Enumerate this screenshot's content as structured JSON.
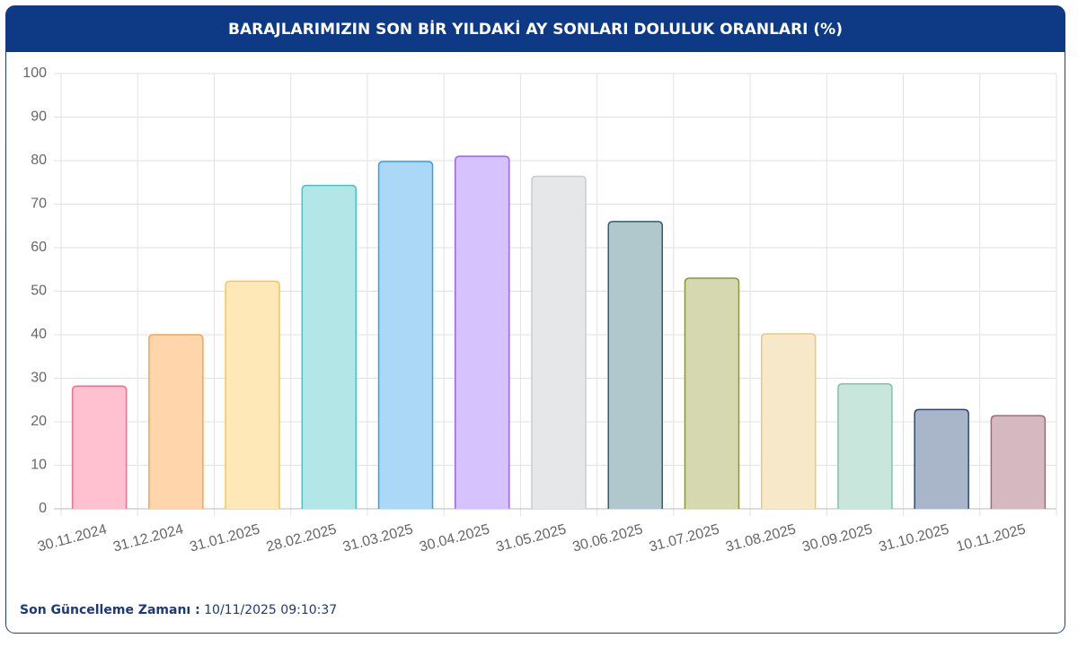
{
  "chart_data": {
    "type": "bar",
    "title": "BARAJLARIMIZIN SON BİR YILDAKİ AY SONLARI DOLULUK ORANLARI (%)",
    "categories": [
      "30.11.2024",
      "31.12.2024",
      "31.01.2025",
      "28.02.2025",
      "31.03.2025",
      "30.04.2025",
      "31.05.2025",
      "30.06.2025",
      "31.07.2025",
      "31.08.2025",
      "30.09.2025",
      "31.10.2025",
      "10.11.2025"
    ],
    "values": [
      28.2,
      40.0,
      52.3,
      74.3,
      79.8,
      81.0,
      76.4,
      66.0,
      53.0,
      40.2,
      28.7,
      22.8,
      21.4
    ],
    "colors": [
      "#ffc0cf",
      "#ffd6ac",
      "#ffe8b8",
      "#b3e6e6",
      "#abd8f7",
      "#d6c2fd",
      "#e6e7e9",
      "#b0c8cc",
      "#d6d9b0",
      "#f6e8c8",
      "#c8e6dc",
      "#a9b5c9",
      "#d6b8c0"
    ],
    "border_colors": [
      "#ee7090",
      "#f6a350",
      "#f3c84c",
      "#4bc0c0",
      "#36a2eb",
      "#9966ff",
      "#c9cbcf",
      "#2e6070",
      "#8c9440",
      "#e8c880",
      "#7ec4aa",
      "#2c4870",
      "#a06878"
    ],
    "ylim": [
      0,
      100
    ],
    "yticks": [
      0,
      10,
      20,
      30,
      40,
      50,
      60,
      70,
      80,
      90,
      100
    ],
    "grid": true
  },
  "footer": {
    "label": "Son Güncelleme Zamanı :",
    "value": "10/11/2025 09:10:37"
  }
}
